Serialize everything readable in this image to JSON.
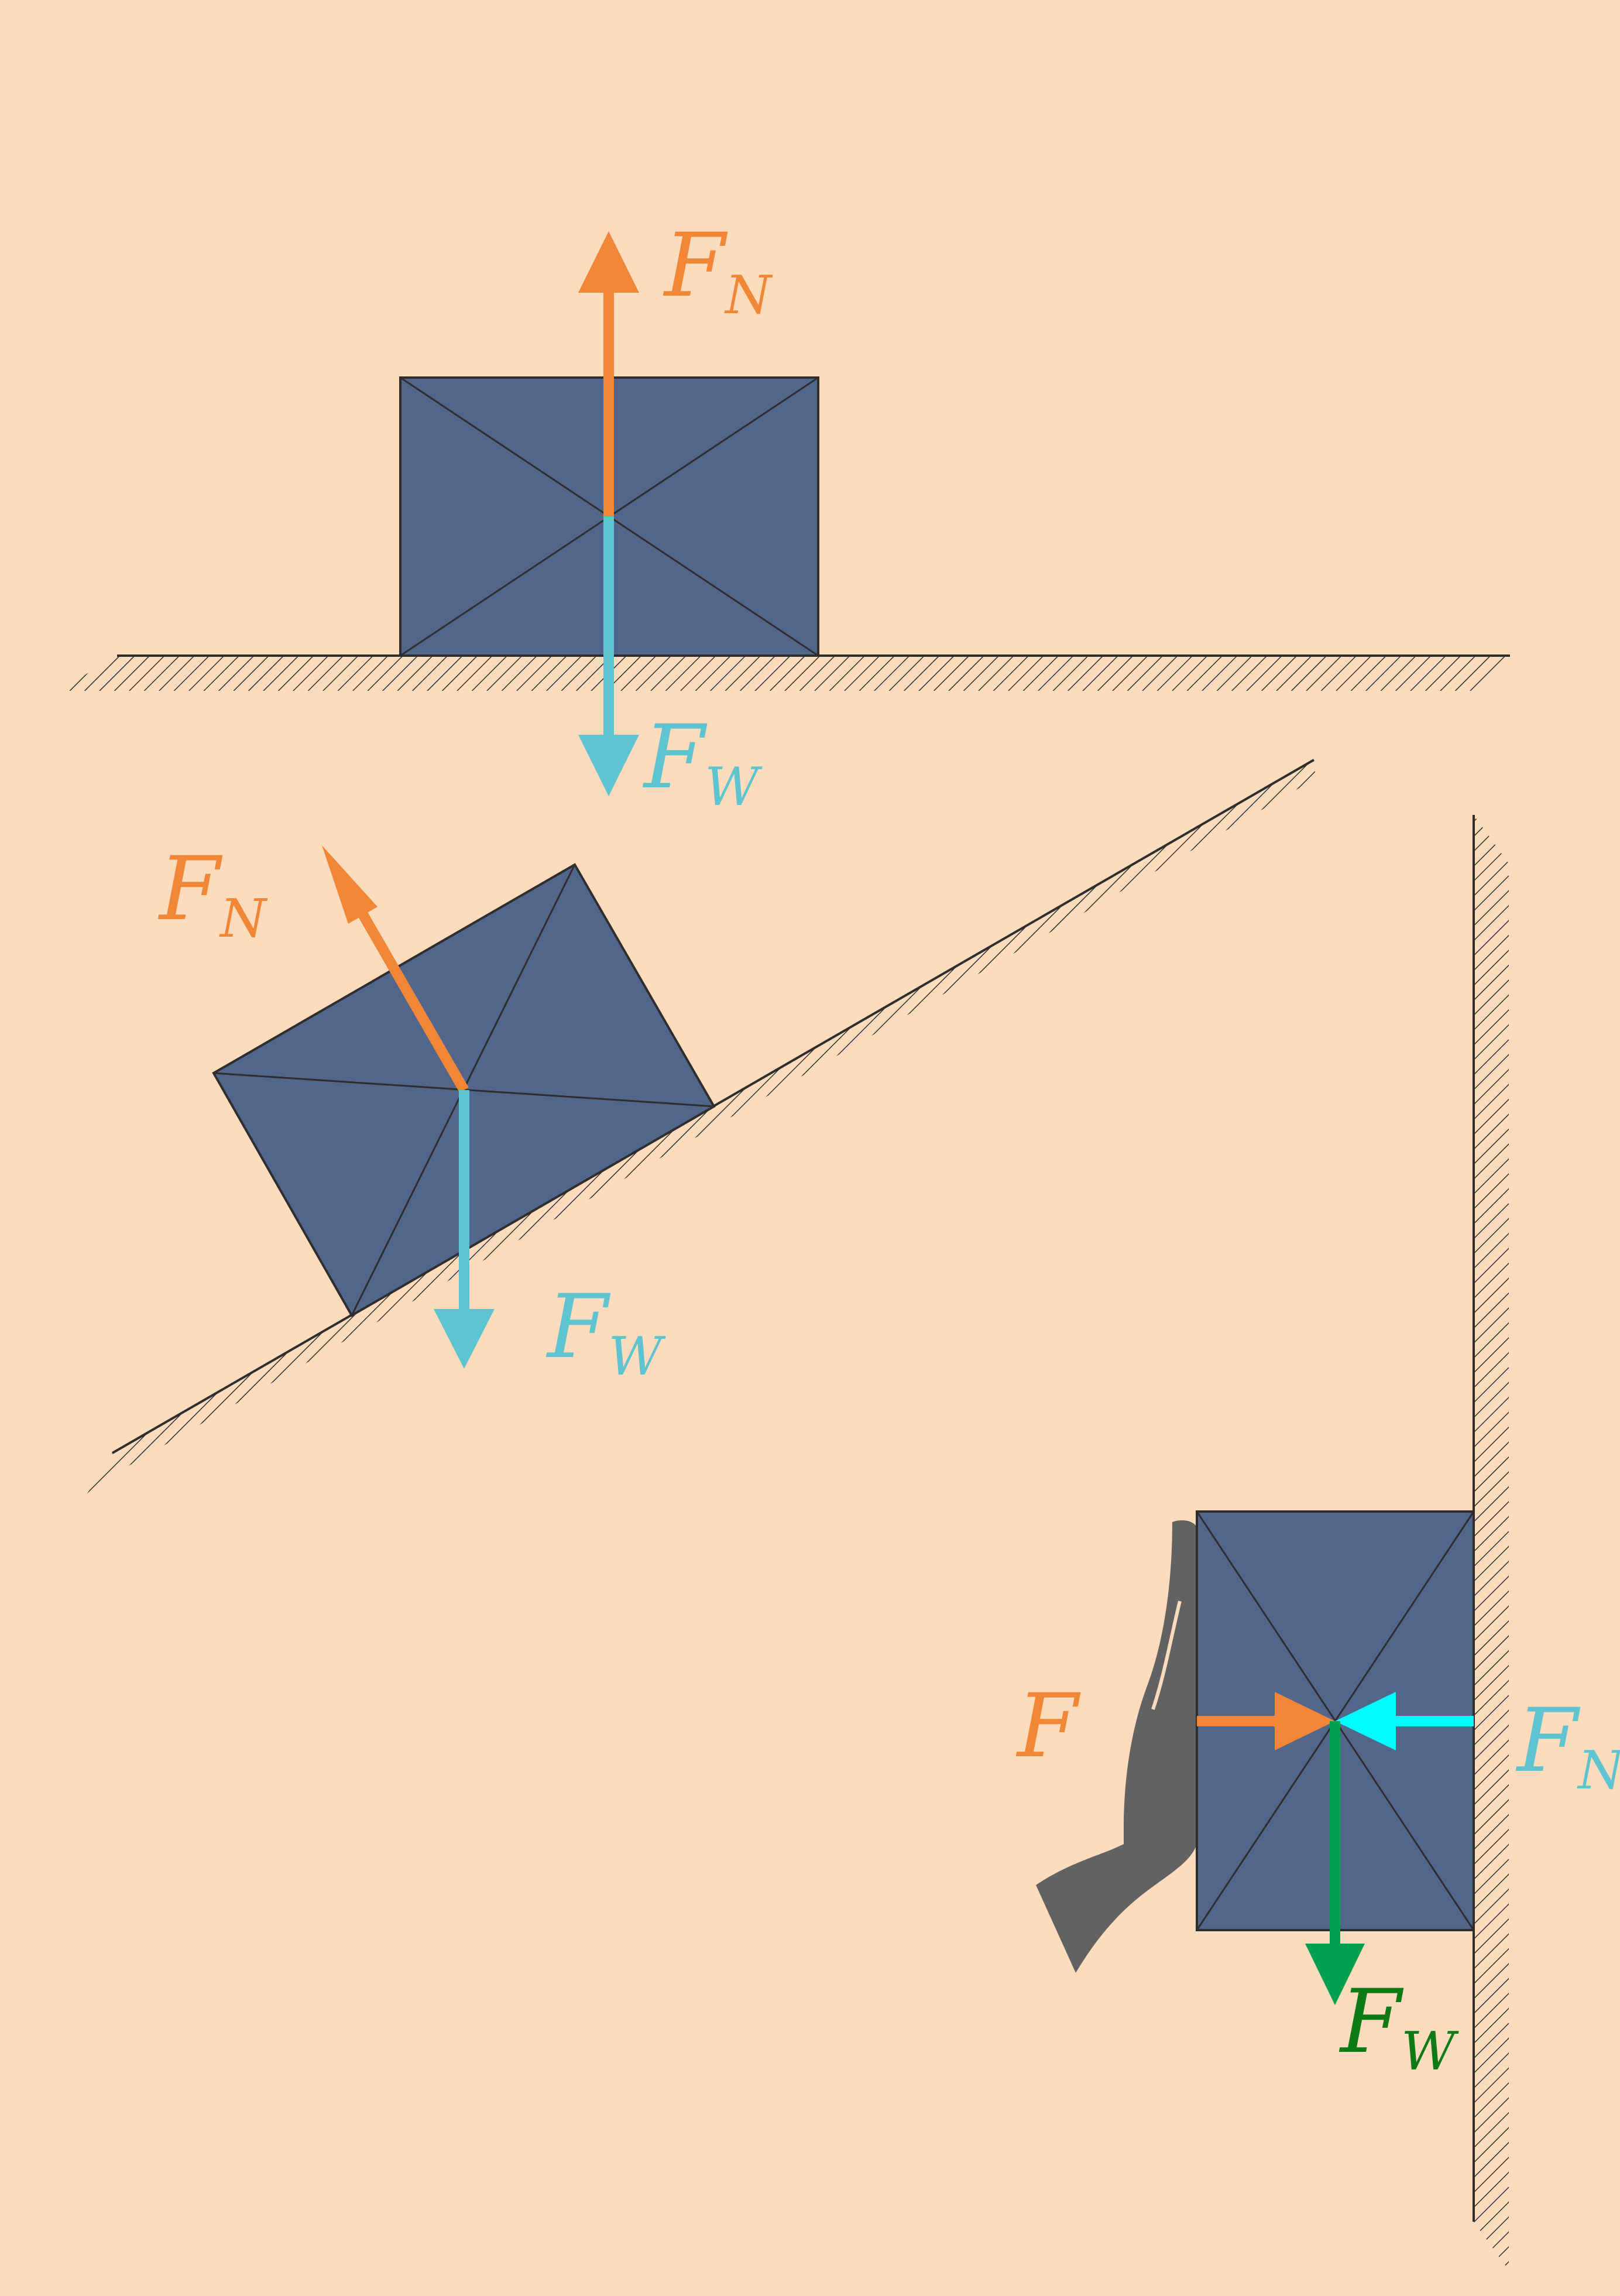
{
  "colors": {
    "background": "#fddbbd",
    "block": "#52658b",
    "block_edge": "#2e2e2e",
    "normal_force": "#f08636",
    "weight": "#5ec4cf",
    "wall_normal": "#00fdfd",
    "wall_weight_arrow": "#00a050",
    "wall_weight_label": "#0e7a16",
    "hand": "#626262"
  },
  "icons": [
    "hand-icon"
  ],
  "scenes": {
    "flat": {
      "normal": {
        "base": "F",
        "sub": "N"
      },
      "weight": {
        "base": "F",
        "sub": "W"
      }
    },
    "incline": {
      "normal": {
        "base": "F",
        "sub": "N"
      },
      "weight": {
        "base": "F",
        "sub": "W"
      }
    },
    "wall": {
      "applied": {
        "base": "F",
        "sub": ""
      },
      "normal": {
        "base": "F",
        "sub": "N"
      },
      "weight": {
        "base": "F",
        "sub": "W"
      }
    }
  }
}
